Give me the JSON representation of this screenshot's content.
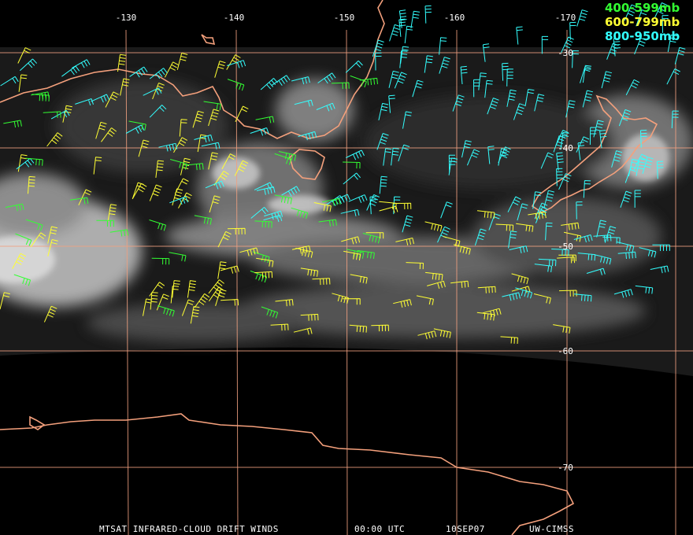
{
  "grid_labels": {
    "longitude": [
      "-130",
      "-140",
      "-150",
      "-160",
      "-170"
    ],
    "latitude": [
      "-30",
      "-40",
      "-50",
      "-60",
      "-70"
    ]
  },
  "legend": [
    "400-599mb",
    "600-799mb",
    "800-950mb"
  ],
  "footer": {
    "product": "MTSAT INFRARED-CLOUD DRIFT WINDS",
    "time": "00:00 UTC",
    "date": "10SEP07",
    "source": "UW-CIMSS"
  }
}
